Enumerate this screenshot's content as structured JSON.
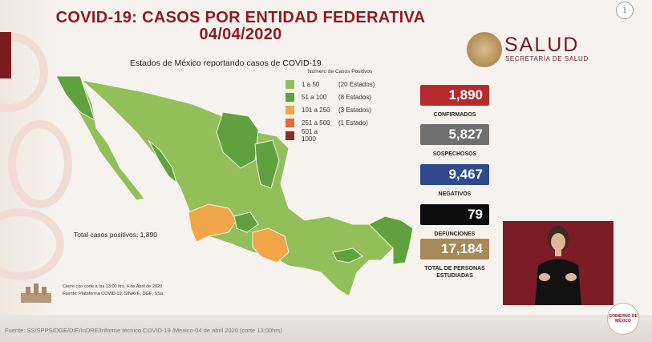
{
  "title_line1": "COVID-19: CASOS POR ENTIDAD FEDERATIVA",
  "title_line2": "04/04/2020",
  "info_glyph": "i",
  "logo": {
    "name": "SALUD",
    "subtitle": "SECRETARÍA DE SALUD"
  },
  "map": {
    "title": "Estados de México reportando casos de COVID-19",
    "legend_title": "Número de Casos Positivos",
    "legend": [
      {
        "range": "1 a    50",
        "count": "(20 Estados)",
        "color": "#93bf5a"
      },
      {
        "range": "51 a   100",
        "count": "(8 Estados)",
        "color": "#5fa23d"
      },
      {
        "range": "101 a   250",
        "count": "(3 Estados)",
        "color": "#f0a648"
      },
      {
        "range": "251 a   500",
        "count": "(1 Estado)",
        "color": "#e06b3a"
      },
      {
        "range": "501 a 1000",
        "count": "",
        "color": "#8d2b2b"
      }
    ],
    "total_label": "Total casos positivos: 1,890",
    "note_line1": "Cierre con corte a las 13:00 hrs, 4 de Abril de 2020",
    "note_line2": "Fuente: Plataforma COVID-19, SINAVE, DGE, SSa."
  },
  "stats": [
    {
      "value": "1,890",
      "label": "CONFIRMADOS",
      "color": "#b72a2c"
    },
    {
      "value": "5,827",
      "label": "SOSPECHOSOS",
      "color": "#6f6f6f"
    },
    {
      "value": "9,467",
      "label": "NEGATIVOS",
      "color": "#2f4a8c"
    },
    {
      "value": "79",
      "label": "DEFUNCIONES",
      "color": "#0c0c0c"
    },
    {
      "value": "17,184",
      "label": "TOTAL DE PERSONAS ESTUDIADAS",
      "color": "#a78a58"
    }
  ],
  "source": "Fuente: SS/SPPS/DGE/DIE/InDRE/Informe técnico.COVID-19 /Mexico-04 de abril 2020 (corte 13:00hrs)",
  "mexico_logo_text": "GOBIERNO DE MÉXICO"
}
